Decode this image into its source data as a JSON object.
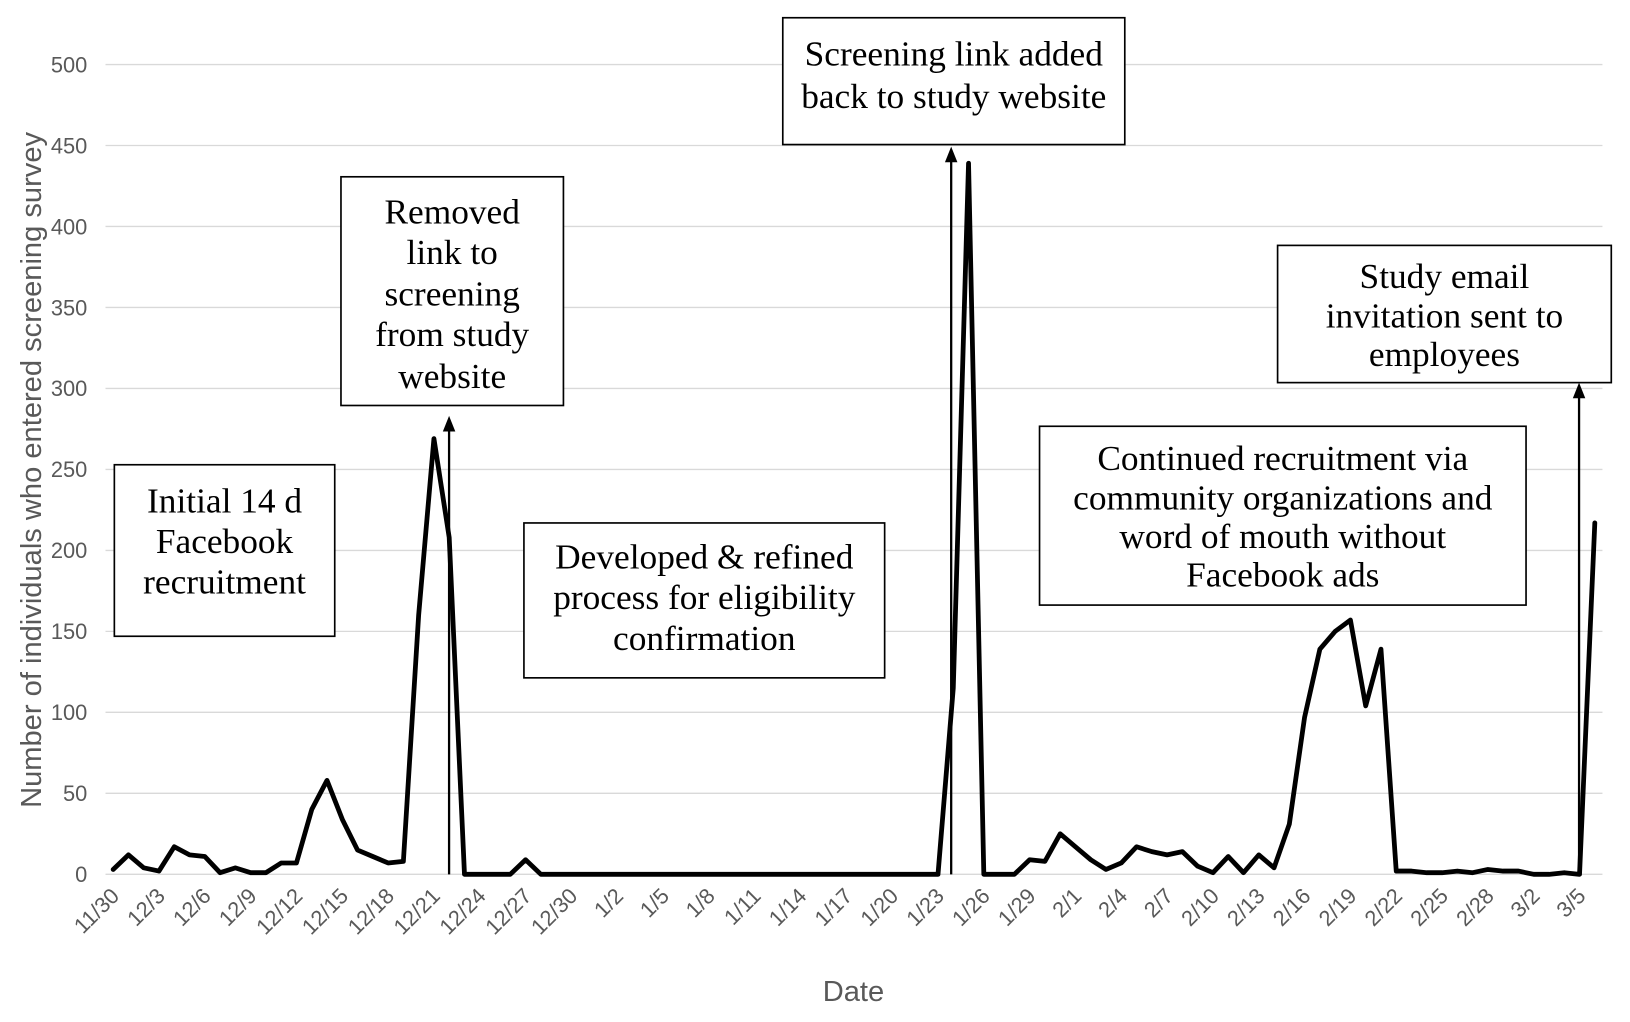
{
  "chart_data": {
    "type": "line",
    "xlabel": "Date",
    "ylabel": "Number of individuals who entered screening survey",
    "ylim": [
      0,
      500
    ],
    "yticks": [
      0,
      50,
      100,
      150,
      200,
      250,
      300,
      350,
      400,
      450,
      500
    ],
    "grid": "horizontal",
    "legend": "none",
    "x_tick_labels": [
      "11/30",
      "12/3",
      "12/6",
      "12/9",
      "12/12",
      "12/15",
      "12/18",
      "12/21",
      "12/24",
      "12/27",
      "12/30",
      "1/2",
      "1/5",
      "1/8",
      "1/11",
      "1/14",
      "1/17",
      "1/20",
      "1/23",
      "1/26",
      "1/29",
      "2/1",
      "2/4",
      "2/7",
      "2/10",
      "2/13",
      "2/16",
      "2/19",
      "2/22",
      "2/25",
      "2/28",
      "3/2",
      "3/5"
    ],
    "x": [
      "11/30",
      "12/1",
      "12/2",
      "12/3",
      "12/4",
      "12/5",
      "12/6",
      "12/7",
      "12/8",
      "12/9",
      "12/10",
      "12/11",
      "12/12",
      "12/13",
      "12/14",
      "12/15",
      "12/16",
      "12/17",
      "12/18",
      "12/19",
      "12/20",
      "12/21",
      "12/22",
      "12/23",
      "12/24",
      "12/25",
      "12/26",
      "12/27",
      "12/28",
      "12/29",
      "12/30",
      "12/31",
      "1/1",
      "1/2",
      "1/3",
      "1/4",
      "1/5",
      "1/6",
      "1/7",
      "1/8",
      "1/9",
      "1/10",
      "1/11",
      "1/12",
      "1/13",
      "1/14",
      "1/15",
      "1/16",
      "1/17",
      "1/18",
      "1/19",
      "1/20",
      "1/21",
      "1/22",
      "1/23",
      "1/24",
      "1/25",
      "1/26",
      "1/27",
      "1/28",
      "1/29",
      "1/30",
      "1/31",
      "2/1",
      "2/2",
      "2/3",
      "2/4",
      "2/5",
      "2/6",
      "2/7",
      "2/8",
      "2/9",
      "2/10",
      "2/11",
      "2/12",
      "2/13",
      "2/14",
      "2/15",
      "2/16",
      "2/17",
      "2/18",
      "2/19",
      "2/20",
      "2/21",
      "2/22",
      "2/23",
      "2/24",
      "2/25",
      "2/26",
      "2/27",
      "2/28",
      "2/29",
      "3/1",
      "3/2",
      "3/3",
      "3/4",
      "3/5",
      "3/6"
    ],
    "series": [
      {
        "values": [
          3,
          12,
          4,
          2,
          17,
          12,
          11,
          1,
          4,
          1,
          1,
          7,
          7,
          40,
          58,
          34,
          15,
          11,
          7,
          8,
          160,
          269,
          208,
          0,
          0,
          0,
          0,
          9,
          0,
          0,
          0,
          0,
          0,
          0,
          0,
          0,
          0,
          0,
          0,
          0,
          0,
          0,
          0,
          0,
          0,
          0,
          0,
          0,
          0,
          0,
          0,
          0,
          0,
          0,
          0,
          115,
          439,
          0,
          0,
          0,
          9,
          8,
          25,
          17,
          9,
          3,
          7,
          17,
          14,
          12,
          14,
          5,
          1,
          11,
          1,
          12,
          4,
          31,
          97,
          139,
          150,
          157,
          104,
          139,
          2,
          2,
          1,
          1,
          2,
          1,
          3,
          2,
          2,
          0,
          0,
          1,
          0,
          217
        ]
      }
    ],
    "annotations": [
      {
        "lines": [
          "Initial 14 d",
          "Facebook",
          "recruitment"
        ]
      },
      {
        "lines": [
          "Removed",
          "link to",
          "screening",
          "from study",
          "website"
        ]
      },
      {
        "lines": [
          "Developed & refined",
          "process for eligibility",
          "confirmation"
        ]
      },
      {
        "lines": [
          "Screening link added",
          "back to study website"
        ]
      },
      {
        "lines": [
          "Continued recruitment via",
          "community organizations and",
          "word of mouth without",
          "Facebook ads"
        ]
      },
      {
        "lines": [
          "Study email",
          "invitation sent to",
          "employees"
        ]
      }
    ],
    "colors": {
      "line": "#000000",
      "grid": "#d9d9d9",
      "axis_text": "#595959",
      "annotation_border": "#000000"
    }
  }
}
